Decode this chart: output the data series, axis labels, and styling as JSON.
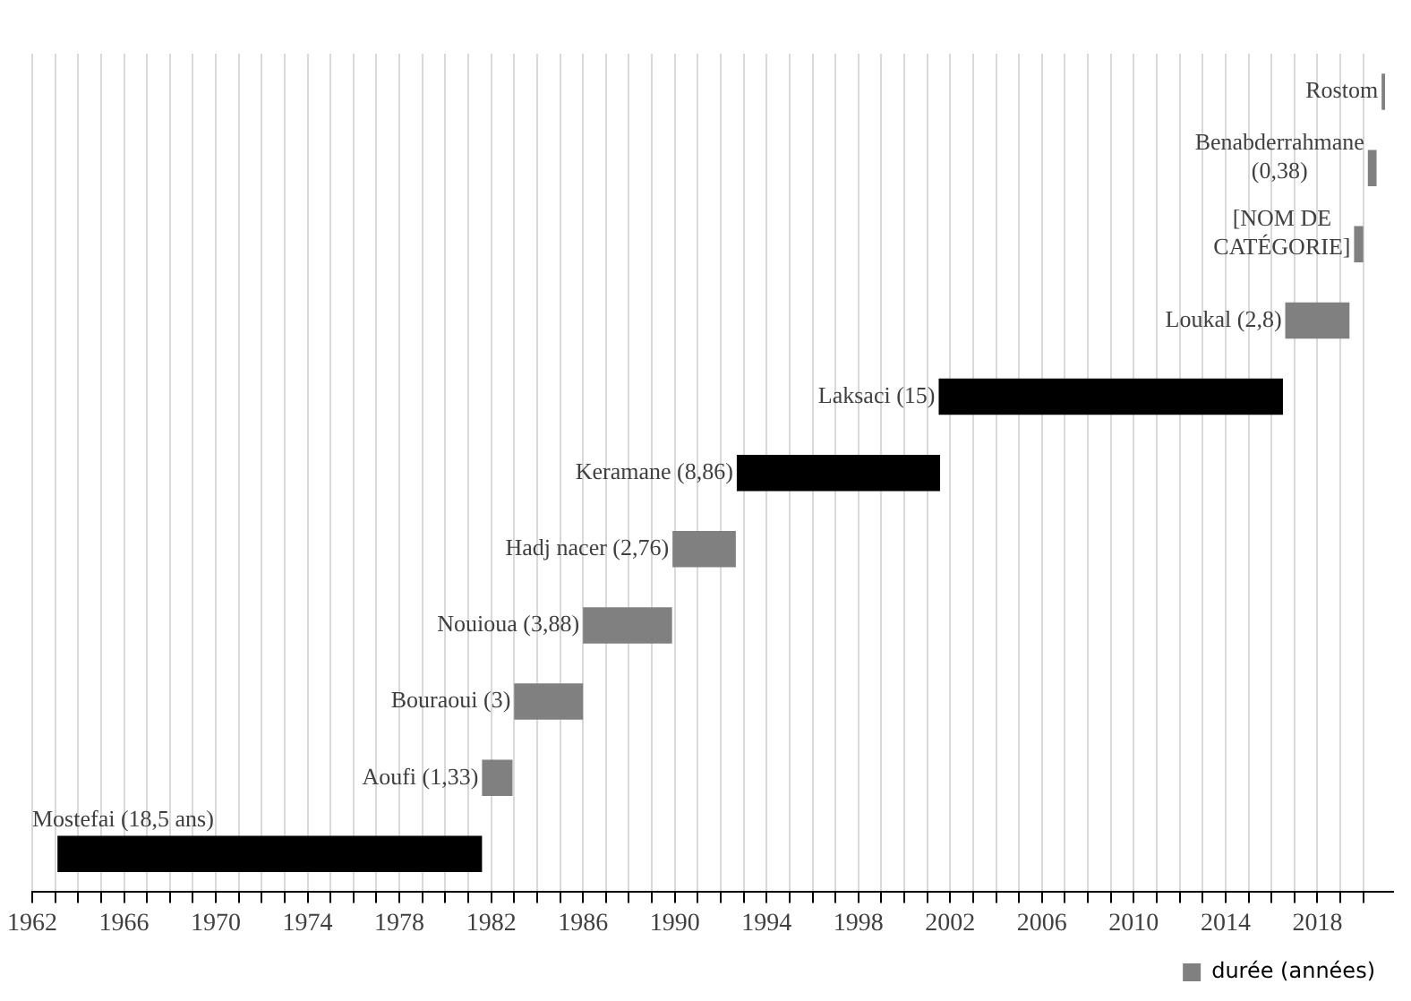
{
  "chart_data": {
    "type": "bar",
    "orientation": "horizontal",
    "categories": [
      "Rostom",
      "Benabderrahmane (0,38)",
      "[NOM DE CATÉGORIE]",
      "Loukal (2,8)",
      "Laksaci (15)",
      "Keramane (8,86)",
      "Hadj nacer (2,76)",
      "Nouioua (3,88)",
      "Bouraoui (3)",
      "Aoufi (1,33)",
      "Mostefai (18,5 ans)"
    ],
    "series": [
      {
        "name": "durée (années)",
        "color": "#808080",
        "colors": [
          "#808080",
          "#808080",
          "#808080",
          "#808080",
          "#000000",
          "#000000",
          "#808080",
          "#808080",
          "#808080",
          "#808080",
          "#000000"
        ],
        "base": [
          2020.8,
          2020.2,
          2019.6,
          2016.6,
          2001.5,
          1992.7,
          1989.9,
          1986.0,
          1983.0,
          1981.6,
          1963.1
        ],
        "values": [
          0.15,
          0.38,
          0.4,
          2.8,
          15,
          8.86,
          2.76,
          3.88,
          3,
          1.33,
          18.5
        ]
      }
    ],
    "xlim": [
      1962,
      2021.3
    ],
    "xticks": [
      1962,
      {
        "value": 1963,
        "label": null
      },
      {
        "value": 1964,
        "label": null
      },
      {
        "value": 1965,
        "label": null
      },
      1966,
      {
        "value": 1967,
        "label": null
      },
      {
        "value": 1968,
        "label": null
      },
      {
        "value": 1969,
        "label": null
      },
      1970,
      {
        "value": 1971,
        "label": null
      },
      {
        "value": 1972,
        "label": null
      },
      {
        "value": 1973,
        "label": null
      },
      1974,
      {
        "value": 1975,
        "label": null
      },
      {
        "value": 1976,
        "label": null
      },
      {
        "value": 1977,
        "label": null
      },
      1978,
      {
        "value": 1979,
        "label": null
      },
      {
        "value": 1980,
        "label": null
      },
      {
        "value": 1981,
        "label": null
      },
      1982,
      {
        "value": 1983,
        "label": null
      },
      {
        "value": 1984,
        "label": null
      },
      {
        "value": 1985,
        "label": null
      },
      1986,
      {
        "value": 1987,
        "label": null
      },
      {
        "value": 1988,
        "label": null
      },
      {
        "value": 1989,
        "label": null
      },
      1990,
      {
        "value": 1991,
        "label": null
      },
      {
        "value": 1992,
        "label": null
      },
      {
        "value": 1993,
        "label": null
      },
      1994,
      {
        "value": 1995,
        "label": null
      },
      {
        "value": 1996,
        "label": null
      },
      {
        "value": 1997,
        "label": null
      },
      1998,
      {
        "value": 1999,
        "label": null
      },
      {
        "value": 2000,
        "label": null
      },
      {
        "value": 2001,
        "label": null
      },
      2002,
      {
        "value": 2003,
        "label": null
      },
      {
        "value": 2004,
        "label": null
      },
      {
        "value": 2005,
        "label": null
      },
      2006,
      {
        "value": 2007,
        "label": null
      },
      {
        "value": 2008,
        "label": null
      },
      {
        "value": 2009,
        "label": null
      },
      2010,
      {
        "value": 2011,
        "label": null
      },
      {
        "value": 2012,
        "label": null
      },
      {
        "value": 2013,
        "label": null
      },
      2014,
      {
        "value": 2015,
        "label": null
      },
      {
        "value": 2016,
        "label": null
      },
      {
        "value": 2017,
        "label": null
      },
      2018,
      {
        "value": 2019,
        "label": null
      },
      {
        "value": 2020,
        "label": null
      }
    ],
    "tick_labels": "x",
    "grid": "x",
    "legend": "bottom right"
  }
}
